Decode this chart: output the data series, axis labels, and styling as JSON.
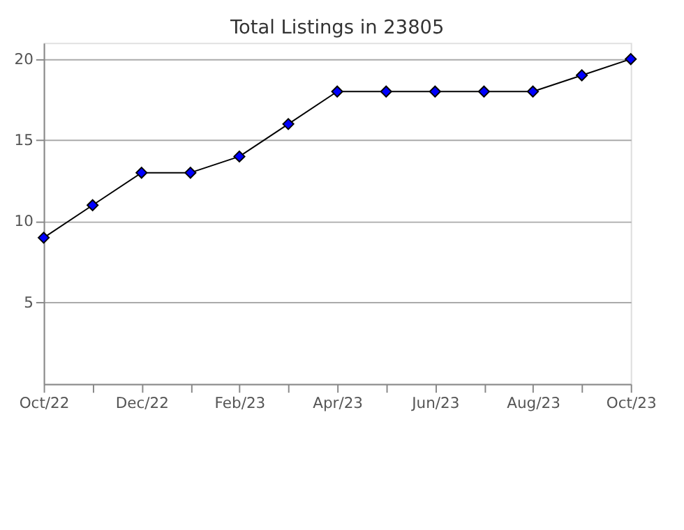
{
  "chart_data": {
    "type": "line",
    "title": "Total Listings in 23805",
    "categories": [
      "Oct/22",
      null,
      "Dec/22",
      null,
      "Feb/23",
      null,
      "Apr/23",
      null,
      "Jun/23",
      null,
      "Aug/23",
      null,
      "Oct/23"
    ],
    "series": [
      {
        "color": "#0000ff",
        "values": [
          9,
          11,
          13,
          13,
          14,
          16,
          18,
          18,
          18,
          18,
          18,
          19,
          20
        ]
      }
    ],
    "ylim": [
      0,
      21
    ],
    "yticks": [
      5,
      10,
      15,
      20
    ],
    "grid": "y",
    "marker": "diamond",
    "line_style": "solid"
  }
}
